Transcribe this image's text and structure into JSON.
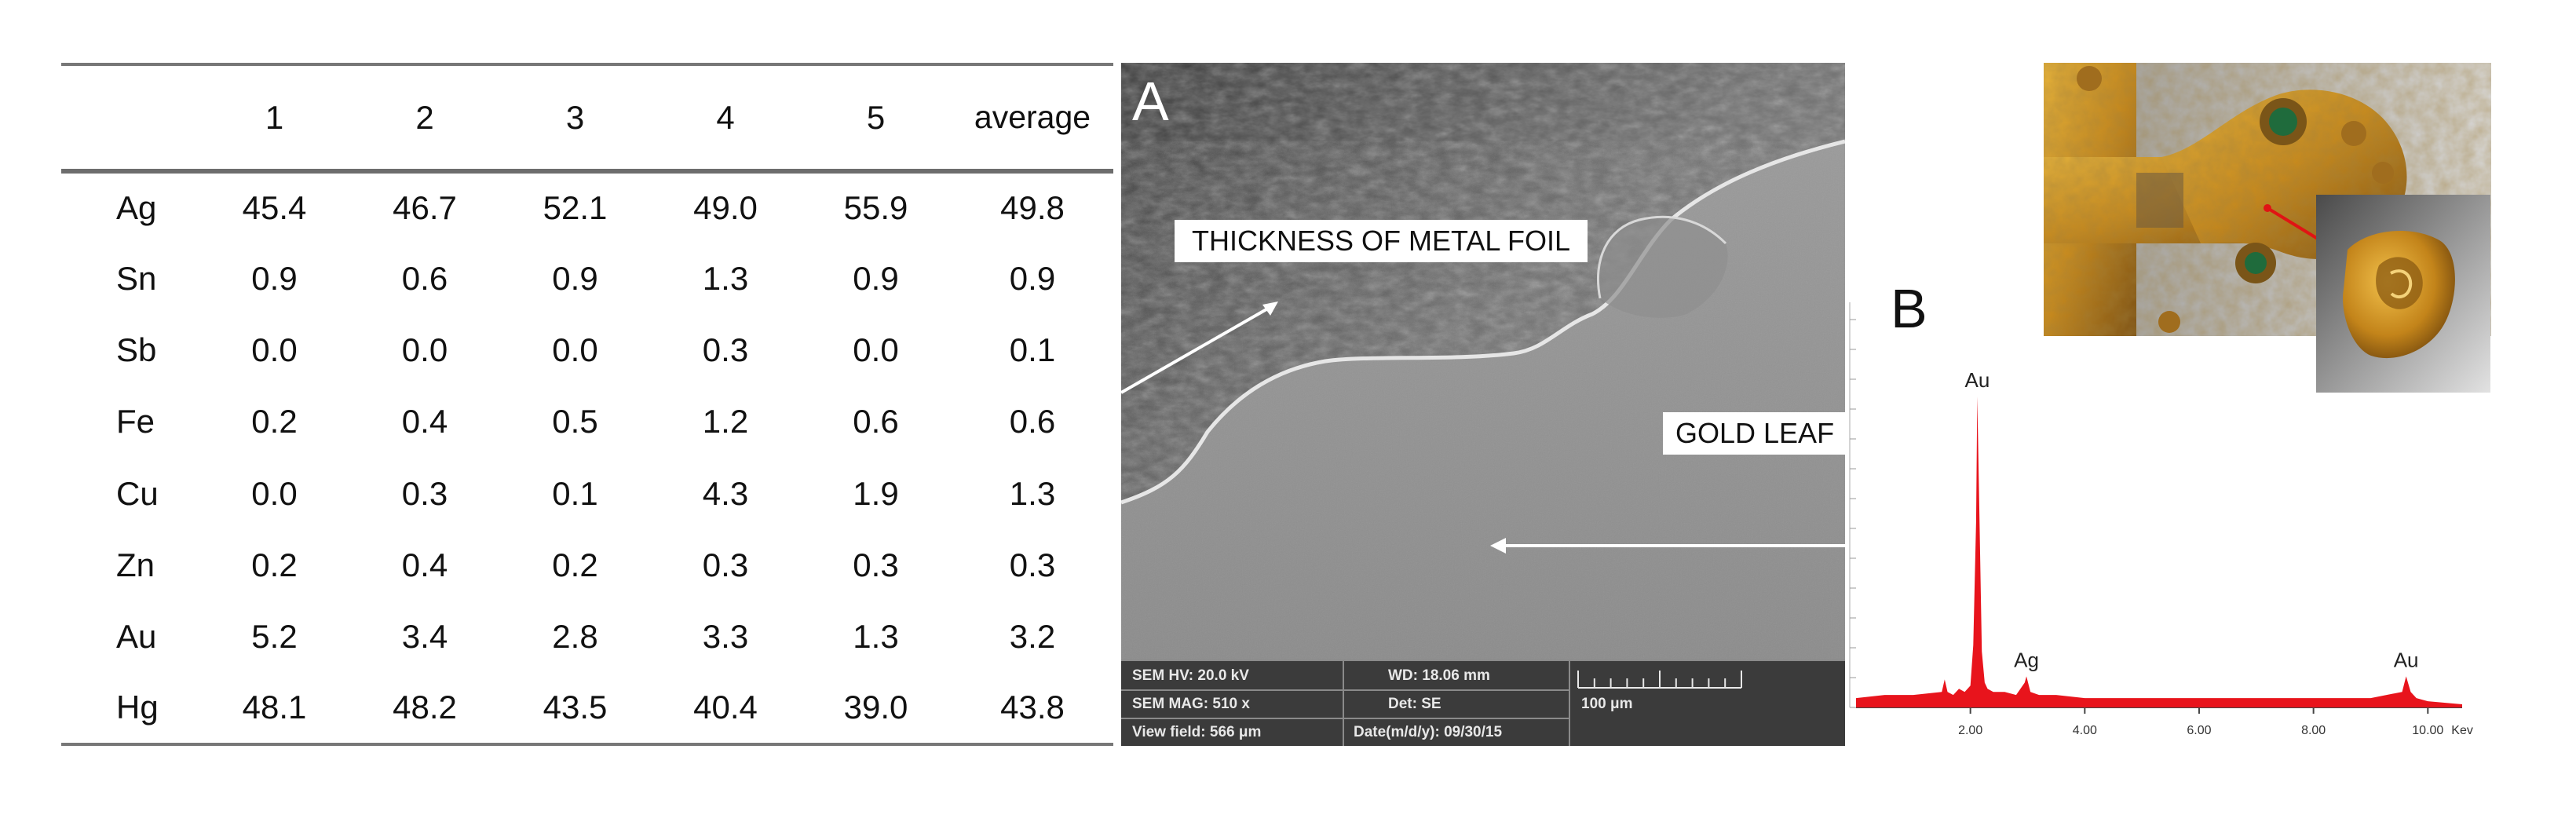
{
  "table": {
    "headers": [
      "",
      "1",
      "2",
      "3",
      "4",
      "5",
      "average"
    ],
    "rows": [
      {
        "element": "Ag",
        "values": [
          "45.4",
          "46.7",
          "52.1",
          "49.0",
          "55.9",
          "49.8"
        ]
      },
      {
        "element": "Sn",
        "values": [
          "0.9",
          "0.6",
          "0.9",
          "1.3",
          "0.9",
          "0.9"
        ]
      },
      {
        "element": "Sb",
        "values": [
          "0.0",
          "0.0",
          "0.0",
          "0.3",
          "0.0",
          "0.1"
        ]
      },
      {
        "element": "Fe",
        "values": [
          "0.2",
          "0.4",
          "0.5",
          "1.2",
          "0.6",
          "0.6"
        ]
      },
      {
        "element": "Cu",
        "values": [
          "0.0",
          "0.3",
          "0.1",
          "4.3",
          "1.9",
          "1.3"
        ]
      },
      {
        "element": "Zn",
        "values": [
          "0.2",
          "0.4",
          "0.2",
          "0.3",
          "0.3",
          "0.3"
        ]
      },
      {
        "element": "Au",
        "values": [
          "5.2",
          "3.4",
          "2.8",
          "3.3",
          "1.3",
          "3.2"
        ]
      },
      {
        "element": "Hg",
        "values": [
          "48.1",
          "48.2",
          "43.5",
          "40.4",
          "39.0",
          "43.8"
        ]
      }
    ]
  },
  "sem": {
    "panel_letter": "A",
    "label_thickness": "THICKNESS OF  METAL FOIL",
    "label_gold": "GOLD LEAF",
    "footer": {
      "hv": "SEM HV: 20.0 kV",
      "wd": "WD: 18.06 mm",
      "mag": "SEM MAG: 510 x",
      "det": "Det: SE",
      "scale": "100 μm",
      "view_field": "View field: 566 μm",
      "date": "Date(m/d/y): 09/30/15"
    }
  },
  "spectrum": {
    "panel_letter": "B",
    "peak_labels": {
      "au_main": "Au",
      "ag": "Ag",
      "au_high": "Au"
    },
    "x_ticks": [
      "2.00",
      "4.00",
      "6.00",
      "8.00",
      "10.00"
    ],
    "x_unit": "Kev",
    "color": "#e8141c"
  },
  "chart_data": {
    "type": "line",
    "title": "",
    "xlabel": "Kev",
    "ylabel": "",
    "xlim": [
      0.0,
      10.6
    ],
    "ylim": [
      0,
      100
    ],
    "series": [
      {
        "name": "",
        "x": [
          0.0,
          0.5,
          1.0,
          1.5,
          1.55,
          1.6,
          1.7,
          1.8,
          1.9,
          2.0,
          2.05,
          2.1,
          2.12,
          2.15,
          2.2,
          2.25,
          2.3,
          2.4,
          2.6,
          2.8,
          2.95,
          2.98,
          3.05,
          3.2,
          3.5,
          4.0,
          5.0,
          6.0,
          7.0,
          8.0,
          9.0,
          9.55,
          9.62,
          9.7,
          9.8,
          10.0,
          10.6
        ],
        "y": [
          3,
          4,
          4,
          5,
          9,
          5,
          4,
          6,
          5,
          7,
          20,
          60,
          100,
          70,
          18,
          8,
          6,
          5,
          5,
          4,
          8,
          10,
          5,
          4,
          4,
          3,
          3,
          3,
          3,
          3,
          3,
          5,
          10,
          5,
          3,
          2,
          1
        ]
      }
    ],
    "annotations": [
      "Au",
      "Ag",
      "Au"
    ]
  },
  "photo": {}
}
